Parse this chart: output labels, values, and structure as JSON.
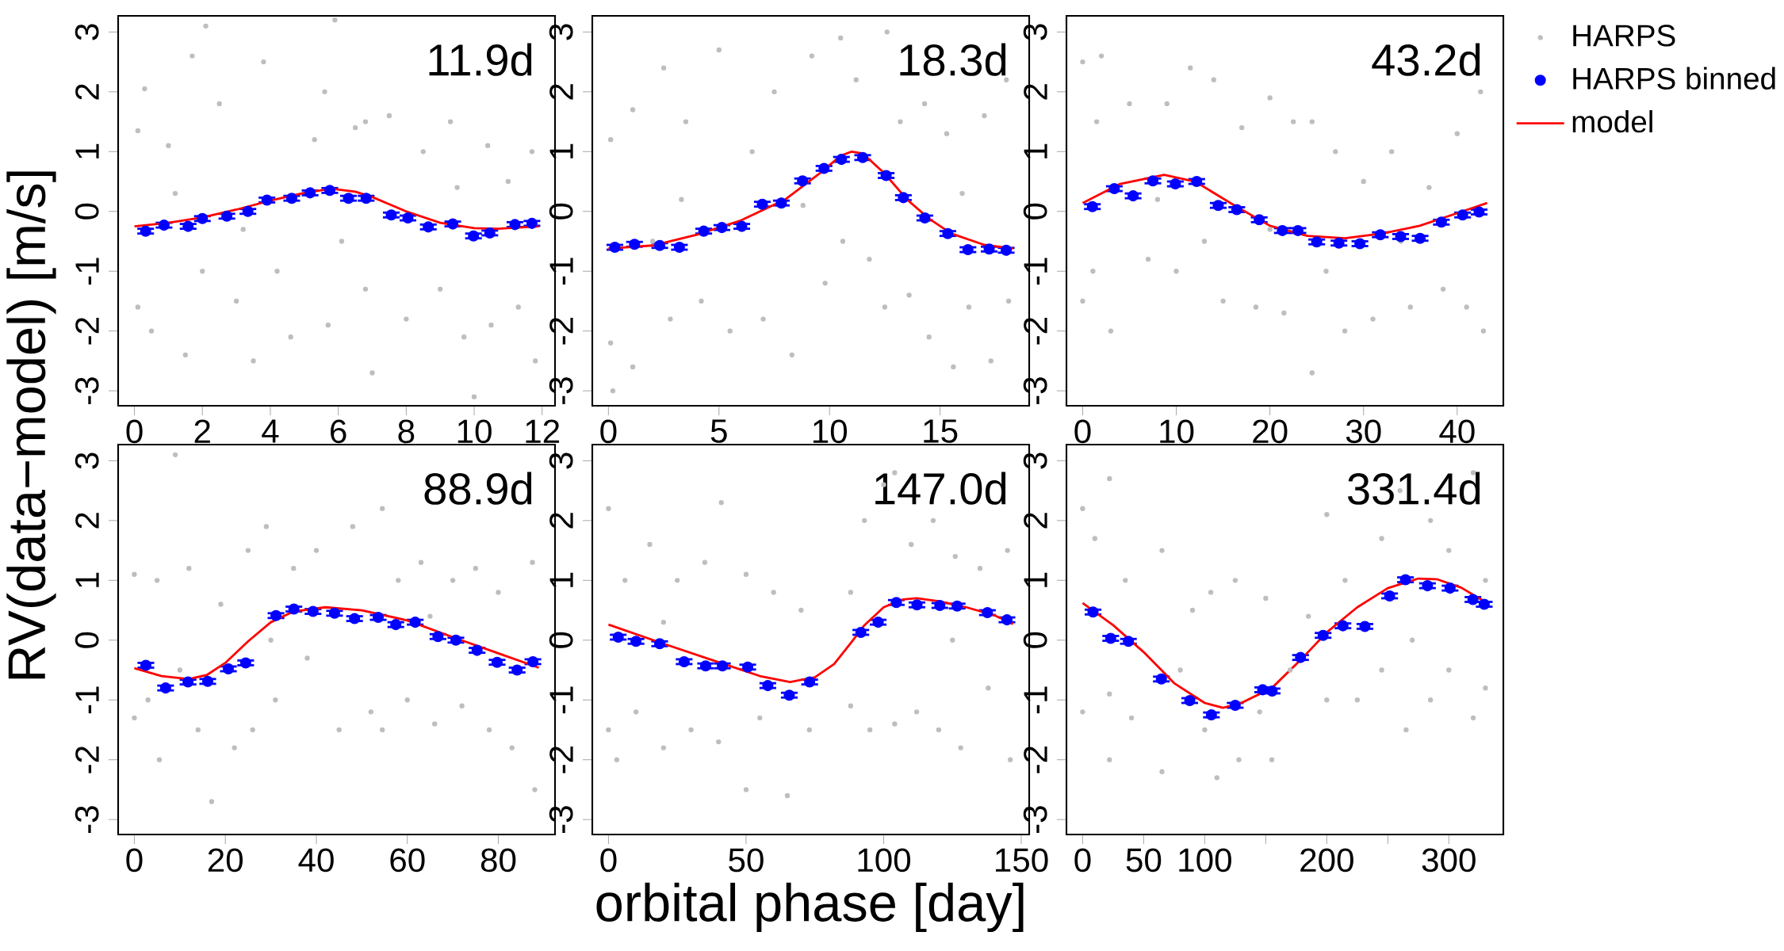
{
  "chart_data": [
    {
      "type": "scatter",
      "ylabel": "RV(data−model) [m/s]",
      "annotations": [
        "11.9d"
      ],
      "xlim": [
        -0.48,
        12.38
      ],
      "ylim": [
        -3.25,
        3.27
      ],
      "xticks": [
        0,
        2,
        4,
        6,
        8,
        10,
        12
      ],
      "yticks": [
        -3,
        -2,
        -1,
        0,
        1,
        2,
        3
      ],
      "series": [
        {
          "type": "scatter",
          "marker": "circle",
          "color": "#bebebe",
          "x": [
            0.1,
            0.1,
            0.3,
            0.5,
            1.0,
            1.5,
            1.7,
            2.0,
            2.1,
            2.5,
            3,
            3.5,
            3.8,
            4.2,
            4.6,
            5.3,
            5.6,
            5.7,
            5.9,
            6.5,
            6.8,
            6.8,
            7.0,
            7.5,
            8,
            8.5,
            9.0,
            9.3,
            9.7,
            10.0,
            10.4,
            10.5,
            11,
            11.3,
            11.7,
            11.8,
            1.2,
            3.2,
            6.1,
            9.5
          ],
          "values": [
            1.35,
            -1.6,
            2.05,
            -2.0,
            1.1,
            -2.4,
            2.6,
            -1.0,
            3.1,
            1.8,
            -1.5,
            -2.5,
            2.5,
            -1.0,
            -2.1,
            1.2,
            2.0,
            -1.9,
            3.2,
            1.4,
            1.5,
            -1.3,
            -2.7,
            1.6,
            -1.8,
            1.0,
            -1.3,
            1.5,
            -2.1,
            -3.1,
            1.1,
            -1.9,
            0.5,
            -1.6,
            1.0,
            -2.5,
            0.3,
            -0.3,
            -0.5,
            0.4
          ]
        },
        {
          "type": "scatter",
          "marker": "circle",
          "color": "#0000ff",
          "x": [
            0.33,
            0.87,
            1.58,
            2.0,
            2.72,
            3.34,
            3.9,
            4.63,
            5.17,
            5.75,
            6.3,
            6.82,
            7.56,
            8.05,
            8.65,
            9.37,
            9.98,
            10.46,
            11.2,
            11.7
          ],
          "values": [
            -0.33,
            -0.23,
            -0.25,
            -0.12,
            -0.08,
            0.0,
            0.19,
            0.22,
            0.31,
            0.35,
            0.22,
            0.22,
            -0.06,
            -0.11,
            -0.26,
            -0.21,
            -0.41,
            -0.36,
            -0.22,
            -0.2
          ],
          "errors": [
            0.04,
            0.04,
            0.04,
            0.04,
            0.04,
            0.04,
            0.04,
            0.04,
            0.04,
            0.04,
            0.04,
            0.04,
            0.04,
            0.04,
            0.04,
            0.04,
            0.04,
            0.04,
            0.04,
            0.04
          ]
        },
        {
          "type": "line",
          "marker": "none",
          "line_style": "solid",
          "color": "#ff0000",
          "x": [
            0,
            1,
            2,
            3,
            4,
            5,
            5.8,
            6.5,
            7,
            8,
            9,
            10,
            10.7,
            11.9
          ],
          "values": [
            -0.25,
            -0.19,
            -0.1,
            0.03,
            0.18,
            0.31,
            0.38,
            0.33,
            0.24,
            0.0,
            -0.19,
            -0.28,
            -0.29,
            -0.25
          ]
        }
      ]
    },
    {
      "type": "scatter",
      "annotations": [
        "18.3d"
      ],
      "xlim": [
        -0.73,
        19.03
      ],
      "ylim": [
        -3.25,
        3.27
      ],
      "xticks": [
        0,
        5,
        10,
        15
      ],
      "yticks": [
        -3,
        -2,
        -1,
        0,
        1,
        2,
        3
      ],
      "series": [
        {
          "type": "scatter",
          "marker": "circle",
          "color": "#bebebe",
          "x": [
            0.1,
            0.1,
            0.2,
            1.1,
            1.1,
            2.5,
            2.8,
            3.5,
            4.2,
            5,
            5.5,
            6.5,
            7,
            7.5,
            8.3,
            9.2,
            9.8,
            10.5,
            10.6,
            11.2,
            11.8,
            12.6,
            12.5,
            13.2,
            13.6,
            14.3,
            14.5,
            15.3,
            15.6,
            16.3,
            17,
            17.3,
            18,
            18.1,
            3.3,
            8.8,
            16,
            2
          ],
          "values": [
            1.2,
            -2.2,
            -3.0,
            1.7,
            -2.6,
            2.4,
            -1.8,
            1.5,
            -1.5,
            2.7,
            -2.0,
            1.0,
            -1.8,
            2.0,
            -2.4,
            2.6,
            -1.2,
            2.9,
            -0.5,
            2.2,
            -0.8,
            3.0,
            -1.6,
            1.5,
            -1.4,
            1.8,
            -2.1,
            1.3,
            -2.6,
            -1.6,
            1.6,
            -2.5,
            2.2,
            -1.5,
            0.2,
            0.1,
            0.3,
            -0.5
          ]
        },
        {
          "type": "scatter",
          "marker": "circle",
          "color": "#0000ff",
          "x": [
            0.29,
            1.18,
            2.32,
            3.21,
            4.31,
            5.13,
            6.03,
            6.96,
            7.82,
            8.78,
            9.75,
            10.54,
            11.5,
            12.56,
            13.34,
            14.31,
            15.35,
            16.26,
            17.22,
            17.99
          ],
          "values": [
            -0.6,
            -0.55,
            -0.57,
            -0.6,
            -0.33,
            -0.27,
            -0.25,
            0.12,
            0.14,
            0.51,
            0.72,
            0.87,
            0.9,
            0.6,
            0.23,
            -0.11,
            -0.37,
            -0.64,
            -0.63,
            -0.65
          ],
          "errors": [
            0.04,
            0.04,
            0.04,
            0.04,
            0.04,
            0.04,
            0.04,
            0.04,
            0.04,
            0.04,
            0.04,
            0.04,
            0.04,
            0.04,
            0.04,
            0.04,
            0.04,
            0.04,
            0.04,
            0.04
          ]
        },
        {
          "type": "line",
          "marker": "none",
          "line_style": "solid",
          "color": "#ff0000",
          "x": [
            0,
            2,
            4,
            6,
            8,
            9.5,
            10.5,
            11,
            11.5,
            12.5,
            13.5,
            14.5,
            15.5,
            17,
            18.3
          ],
          "values": [
            -0.62,
            -0.57,
            -0.39,
            -0.15,
            0.2,
            0.62,
            0.93,
            1.0,
            0.97,
            0.63,
            0.2,
            -0.12,
            -0.37,
            -0.56,
            -0.62
          ]
        }
      ]
    },
    {
      "type": "scatter",
      "annotations": [
        "43.2d"
      ],
      "legend": "right",
      "xlim": [
        -1.73,
        44.93
      ],
      "ylim": [
        -3.25,
        3.27
      ],
      "xticks": [
        0,
        10,
        20,
        30,
        40
      ],
      "yticks": [
        -3,
        -2,
        -1,
        0,
        1,
        2,
        3
      ],
      "series": [
        {
          "name": "HARPS",
          "type": "scatter",
          "marker": "circle",
          "color": "#bebebe",
          "x": [
            0,
            0,
            1.1,
            1.5,
            2,
            3,
            5,
            7,
            9,
            10,
            11.5,
            13,
            14,
            15,
            17,
            18.5,
            20,
            21.5,
            22.5,
            24.5,
            24.5,
            26,
            27,
            28,
            30,
            31,
            33,
            35,
            37,
            38.5,
            40,
            41,
            42.5,
            42.8,
            8,
            20,
            34
          ],
          "values": [
            2.5,
            -1.5,
            -1.0,
            1.5,
            2.6,
            -2.0,
            1.8,
            -0.8,
            1.8,
            -1.0,
            2.4,
            -0.5,
            2.2,
            -1.5,
            1.4,
            -1.6,
            1.9,
            -1.7,
            1.5,
            -2.7,
            1.5,
            -1.0,
            1.0,
            -2.0,
            0.5,
            -1.8,
            1.0,
            -1.6,
            0.4,
            -1.3,
            1.3,
            -1.6,
            2.0,
            -2.0,
            0.2,
            -0.3,
            -0.5
          ]
        },
        {
          "name": "HARPS binned",
          "type": "scatter",
          "marker": "circle",
          "color": "#0000ff",
          "x": [
            1.04,
            3.38,
            5.39,
            7.5,
            9.9,
            12.18,
            14.48,
            16.46,
            18.86,
            21.33,
            22.99,
            25.0,
            27.37,
            29.61,
            31.79,
            33.96,
            36.04,
            38.31,
            40.58,
            42.34
          ],
          "values": [
            0.08,
            0.38,
            0.26,
            0.51,
            0.46,
            0.5,
            0.1,
            0.03,
            -0.14,
            -0.32,
            -0.32,
            -0.51,
            -0.53,
            -0.54,
            -0.39,
            -0.42,
            -0.45,
            -0.18,
            -0.06,
            -0.01
          ],
          "errors": [
            0.04,
            0.04,
            0.04,
            0.04,
            0.04,
            0.04,
            0.04,
            0.04,
            0.04,
            0.04,
            0.04,
            0.04,
            0.04,
            0.04,
            0.04,
            0.04,
            0.04,
            0.04,
            0.04,
            0.04
          ]
        },
        {
          "name": "model",
          "type": "line",
          "marker": "none",
          "line_style": "solid",
          "color": "#ff0000",
          "x": [
            0,
            4,
            8.7,
            12,
            16,
            20,
            24,
            28,
            32,
            36,
            40,
            43.2
          ],
          "values": [
            0.14,
            0.46,
            0.61,
            0.5,
            0.12,
            -0.24,
            -0.41,
            -0.45,
            -0.37,
            -0.24,
            -0.03,
            0.14
          ]
        }
      ]
    },
    {
      "type": "scatter",
      "annotations": [
        "88.9d"
      ],
      "xlim": [
        -3.56,
        92.46
      ],
      "ylim": [
        -3.25,
        3.27
      ],
      "xticks": [
        0,
        20,
        40,
        60,
        80
      ],
      "yticks": [
        -3,
        -2,
        -1,
        0,
        1,
        2,
        3
      ],
      "series": [
        {
          "type": "scatter",
          "marker": "circle",
          "color": "#bebebe",
          "x": [
            0,
            0,
            3,
            5,
            5.5,
            9,
            10,
            12,
            14,
            17,
            19,
            22,
            25,
            26,
            29,
            31,
            35,
            38,
            40,
            45,
            48,
            52,
            54.5,
            54.5,
            58,
            60,
            63,
            66,
            70,
            72,
            75,
            78,
            80,
            83,
            87.5,
            88,
            30,
            65
          ],
          "values": [
            1.1,
            -1.3,
            -1.0,
            1.0,
            -2.0,
            3.1,
            -0.5,
            1.2,
            -1.5,
            -2.7,
            0.6,
            -1.8,
            1.5,
            -1.5,
            1.9,
            -1.0,
            1.2,
            -0.3,
            1.5,
            -1.5,
            1.9,
            -1.2,
            2.2,
            -1.5,
            1.0,
            -1.0,
            1.3,
            -1.4,
            1.0,
            -1.1,
            1.2,
            -1.5,
            0.8,
            -1.8,
            1.3,
            -2.5,
            0.0,
            0.4
          ]
        },
        {
          "type": "scatter",
          "marker": "circle",
          "color": "#0000ff",
          "x": [
            2.53,
            6.87,
            11.8,
            16.13,
            20.67,
            24.47,
            31.13,
            35.07,
            39.27,
            44.0,
            48.4,
            53.6,
            57.47,
            61.73,
            66.73,
            70.67,
            75.33,
            79.73,
            84.13,
            87.6
          ],
          "values": [
            -0.42,
            -0.8,
            -0.7,
            -0.69,
            -0.48,
            -0.38,
            0.41,
            0.52,
            0.48,
            0.45,
            0.36,
            0.38,
            0.26,
            0.3,
            0.06,
            0.0,
            -0.17,
            -0.37,
            -0.5,
            -0.36
          ],
          "errors": [
            0.04,
            0.04,
            0.04,
            0.04,
            0.04,
            0.04,
            0.04,
            0.04,
            0.04,
            0.04,
            0.04,
            0.04,
            0.04,
            0.04,
            0.04,
            0.04,
            0.04,
            0.04,
            0.04,
            0.04
          ]
        },
        {
          "type": "line",
          "marker": "none",
          "line_style": "solid",
          "color": "#ff0000",
          "x": [
            0,
            6,
            12,
            16,
            20,
            25,
            30,
            35,
            42,
            50,
            60,
            70,
            80,
            88.9
          ],
          "values": [
            -0.47,
            -0.6,
            -0.65,
            -0.58,
            -0.38,
            -0.02,
            0.3,
            0.48,
            0.55,
            0.5,
            0.33,
            0.05,
            -0.22,
            -0.46
          ]
        }
      ]
    },
    {
      "type": "scatter",
      "xlabel": "orbital phase [day]",
      "annotations": [
        "147.0d"
      ],
      "xlim": [
        -5.88,
        152.88
      ],
      "ylim": [
        -3.25,
        3.27
      ],
      "xticks": [
        0,
        50,
        100,
        150
      ],
      "yticks": [
        -3,
        -2,
        -1,
        0,
        1,
        2,
        3
      ],
      "series": [
        {
          "type": "scatter",
          "marker": "circle",
          "color": "#bebebe",
          "x": [
            0,
            0,
            3,
            6,
            10,
            15,
            20,
            25,
            30,
            35,
            40,
            41,
            50,
            50,
            55,
            60,
            65,
            70,
            73,
            88,
            88,
            93,
            95,
            100,
            104,
            104,
            110,
            112,
            118,
            120,
            126,
            128,
            135,
            138,
            145,
            146,
            20,
            125
          ],
          "values": [
            2.2,
            -1.5,
            -2.0,
            1.0,
            -1.2,
            1.6,
            -1.8,
            1.0,
            -1.5,
            1.3,
            -1.7,
            2.3,
            1.1,
            -2.5,
            -1.3,
            0.8,
            -2.6,
            0.5,
            -1.5,
            0.8,
            -1.1,
            2.0,
            -1.5,
            2.6,
            2.8,
            -1.4,
            1.6,
            -1.2,
            2.0,
            -1.5,
            1.4,
            -1.8,
            1.2,
            -0.8,
            1.5,
            -2.0,
            0.3,
            0.0
          ]
        },
        {
          "type": "scatter",
          "marker": "circle",
          "color": "#0000ff",
          "x": [
            3.54,
            10.0,
            18.6,
            27.5,
            35.3,
            41.4,
            50.6,
            57.9,
            65.7,
            73.1,
            91.7,
            98.0,
            104.6,
            112.1,
            120.4,
            126.7,
            137.7,
            144.8
          ],
          "values": [
            0.05,
            -0.02,
            -0.06,
            -0.36,
            -0.43,
            -0.43,
            -0.45,
            -0.76,
            -0.92,
            -0.7,
            0.13,
            0.3,
            0.63,
            0.59,
            0.58,
            0.57,
            0.46,
            0.34
          ],
          "errors": [
            0.04,
            0.04,
            0.04,
            0.04,
            0.04,
            0.04,
            0.04,
            0.04,
            0.04,
            0.04,
            0.04,
            0.04,
            0.04,
            0.04,
            0.04,
            0.04,
            0.04,
            0.04
          ]
        },
        {
          "type": "line",
          "marker": "none",
          "line_style": "solid",
          "color": "#ff0000",
          "x": [
            0,
            20,
            40,
            55,
            66,
            75,
            82,
            88,
            93,
            100,
            107,
            112,
            120,
            130,
            140,
            147
          ],
          "values": [
            0.26,
            -0.06,
            -0.37,
            -0.6,
            -0.7,
            -0.62,
            -0.4,
            -0.05,
            0.25,
            0.55,
            0.68,
            0.7,
            0.65,
            0.55,
            0.42,
            0.27
          ]
        }
      ]
    },
    {
      "type": "scatter",
      "annotations": [
        "331.4d"
      ],
      "xlim": [
        -13.26,
        344.66
      ],
      "ylim": [
        -3.25,
        3.27
      ],
      "xticks": [
        0,
        50,
        100,
        {
          "value": 150,
          "label": null
        },
        200,
        {
          "value": 250,
          "label": null
        },
        300
      ],
      "yticks": [
        -3,
        -2,
        -1,
        0,
        1,
        2,
        3
      ],
      "series": [
        {
          "type": "scatter",
          "marker": "circle",
          "color": "#bebebe",
          "x": [
            0,
            0,
            10,
            22,
            22,
            22,
            35,
            40,
            65,
            65,
            80,
            90,
            100,
            105,
            110,
            125,
            128,
            145,
            150,
            155,
            170,
            185,
            200,
            200,
            215,
            225,
            245,
            245,
            260,
            265,
            270,
            285,
            285,
            300,
            300,
            320,
            320,
            330,
            330
          ],
          "values": [
            2.2,
            -1.2,
            1.7,
            2.7,
            -2.0,
            -0.9,
            1.0,
            -1.3,
            1.5,
            -2.2,
            -0.5,
            0.5,
            -1.5,
            0.8,
            -2.3,
            1.0,
            -2.0,
            -1.2,
            0.7,
            -2.0,
            -0.5,
            0.4,
            2.1,
            -1.0,
            1.0,
            -1.0,
            1.7,
            -0.5,
            2.5,
            -1.5,
            0.0,
            2.0,
            -1.0,
            1.5,
            -0.5,
            2.8,
            -1.3,
            1.0,
            -0.8
          ]
        },
        {
          "type": "scatter",
          "marker": "circle",
          "color": "#0000ff",
          "x": [
            8.5,
            23.0,
            37.5,
            64.5,
            87.75,
            105.5,
            125,
            147.5,
            155.25,
            178.5,
            197,
            213.25,
            231.25,
            251.5,
            264.5,
            282.5,
            301,
            319.75,
            329
          ],
          "values": [
            0.47,
            0.03,
            -0.02,
            -0.65,
            -1.01,
            -1.25,
            -1.09,
            -0.83,
            -0.85,
            -0.29,
            0.08,
            0.24,
            0.23,
            0.74,
            1.01,
            0.91,
            0.87,
            0.68,
            0.6
          ],
          "errors": [
            0.04,
            0.04,
            0.04,
            0.04,
            0.04,
            0.04,
            0.04,
            0.04,
            0.04,
            0.04,
            0.04,
            0.04,
            0.04,
            0.04,
            0.04,
            0.04,
            0.04,
            0.04,
            0.04
          ]
        },
        {
          "type": "line",
          "marker": "none",
          "line_style": "solid",
          "color": "#ff0000",
          "x": [
            0,
            25,
            50,
            75,
            100,
            115,
            130,
            155,
            180,
            200,
            225,
            250,
            275,
            290,
            310,
            331.4
          ],
          "values": [
            0.62,
            0.25,
            -0.2,
            -0.72,
            -1.05,
            -1.13,
            -1.05,
            -0.8,
            -0.3,
            0.13,
            0.55,
            0.87,
            1.03,
            1.02,
            0.88,
            0.62
          ]
        }
      ]
    }
  ]
}
